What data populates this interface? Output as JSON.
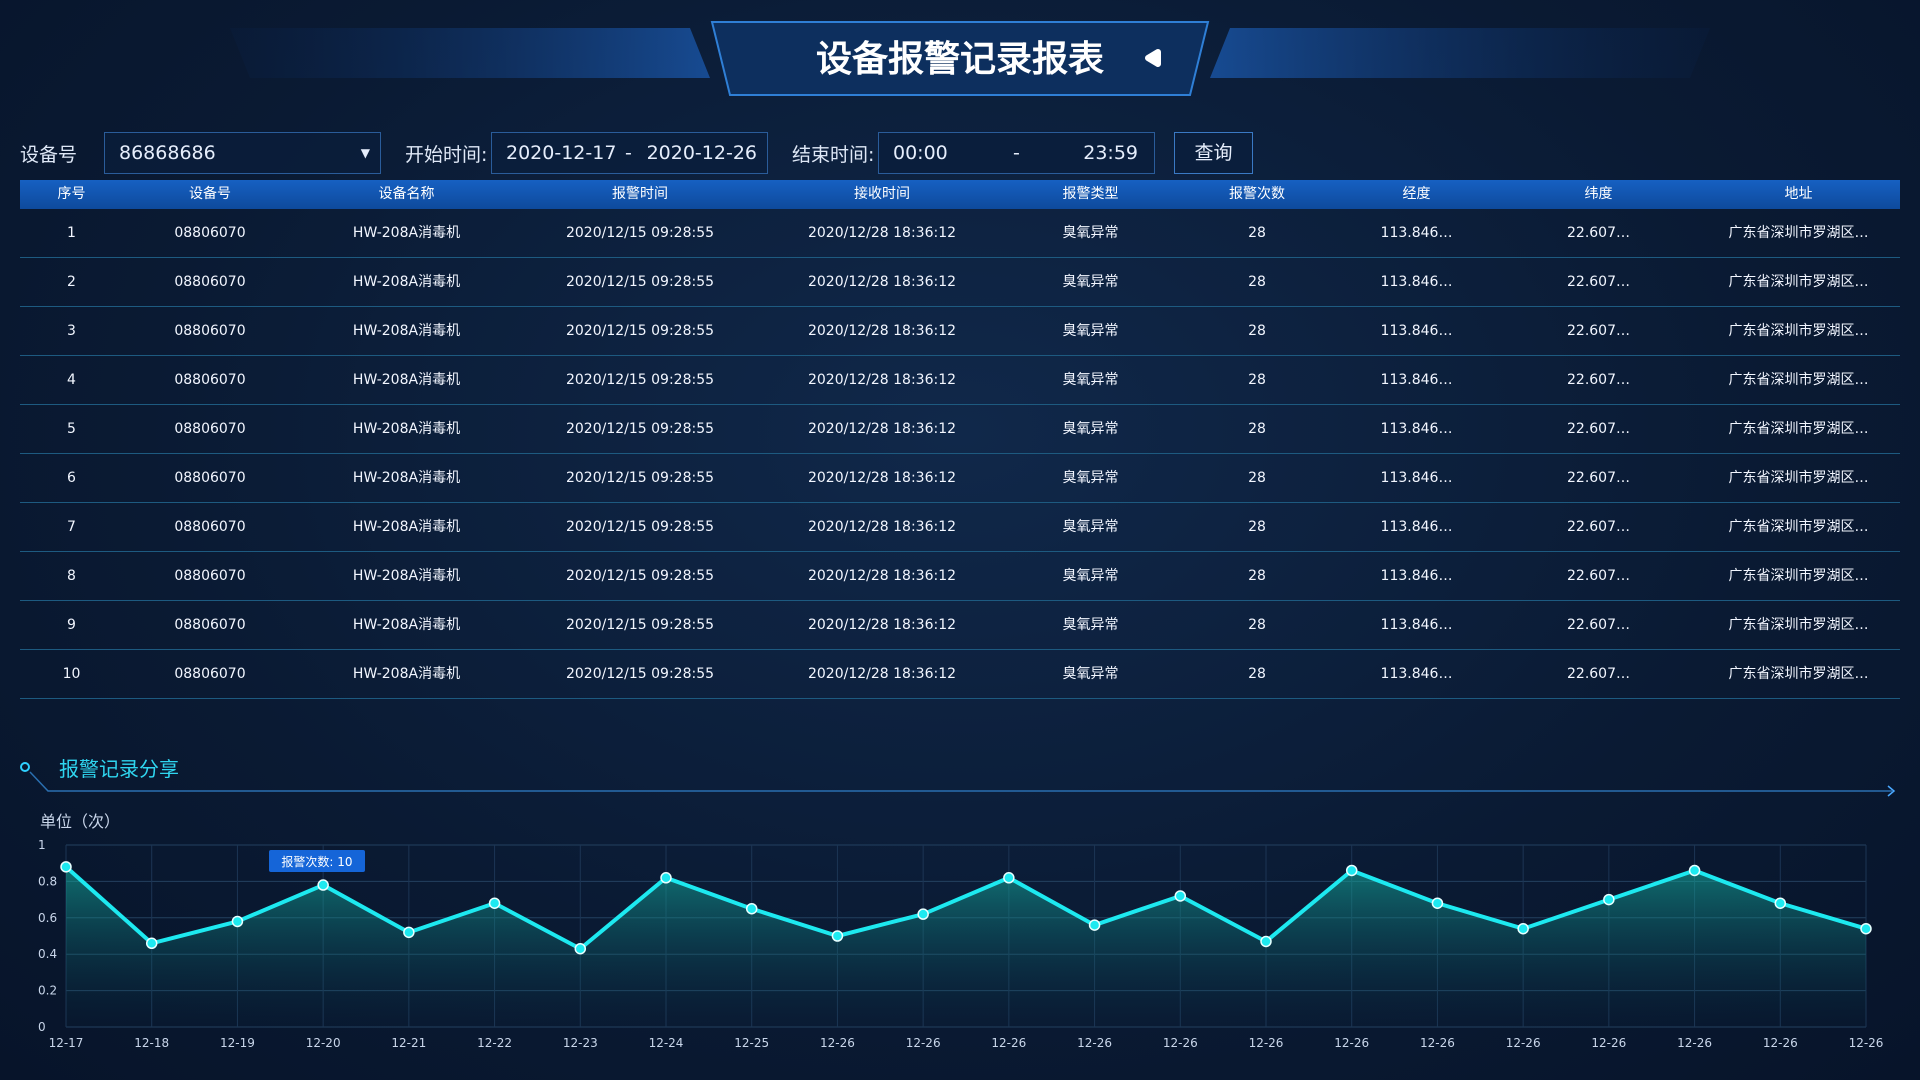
{
  "header": {
    "title": "设备报警记录报表"
  },
  "filters": {
    "device_label": "设备号",
    "device_value": "86868686",
    "start_label": "开始时间:",
    "start_from": "2020-12-17",
    "start_sep": "-",
    "start_to": "2020-12-26",
    "end_label": "结束时间:",
    "end_from": "00:00",
    "end_sep": "-",
    "end_to": "23:59",
    "button": "查询"
  },
  "table": {
    "columns": [
      "序号",
      "设备号",
      "设备名称",
      "报警时间",
      "接收时间",
      "报警类型",
      "报警次数",
      "经度",
      "纬度",
      "地址"
    ],
    "rows": [
      [
        "1",
        "08806070",
        "HW-208A消毒机",
        "2020/12/15 09:28:55",
        "2020/12/28 18:36:12",
        "臭氧异常",
        "28",
        "113.846…",
        "22.607…",
        "广东省深圳市罗湖区…"
      ],
      [
        "2",
        "08806070",
        "HW-208A消毒机",
        "2020/12/15 09:28:55",
        "2020/12/28 18:36:12",
        "臭氧异常",
        "28",
        "113.846…",
        "22.607…",
        "广东省深圳市罗湖区…"
      ],
      [
        "3",
        "08806070",
        "HW-208A消毒机",
        "2020/12/15 09:28:55",
        "2020/12/28 18:36:12",
        "臭氧异常",
        "28",
        "113.846…",
        "22.607…",
        "广东省深圳市罗湖区…"
      ],
      [
        "4",
        "08806070",
        "HW-208A消毒机",
        "2020/12/15 09:28:55",
        "2020/12/28 18:36:12",
        "臭氧异常",
        "28",
        "113.846…",
        "22.607…",
        "广东省深圳市罗湖区…"
      ],
      [
        "5",
        "08806070",
        "HW-208A消毒机",
        "2020/12/15 09:28:55",
        "2020/12/28 18:36:12",
        "臭氧异常",
        "28",
        "113.846…",
        "22.607…",
        "广东省深圳市罗湖区…"
      ],
      [
        "6",
        "08806070",
        "HW-208A消毒机",
        "2020/12/15 09:28:55",
        "2020/12/28 18:36:12",
        "臭氧异常",
        "28",
        "113.846…",
        "22.607…",
        "广东省深圳市罗湖区…"
      ],
      [
        "7",
        "08806070",
        "HW-208A消毒机",
        "2020/12/15 09:28:55",
        "2020/12/28 18:36:12",
        "臭氧异常",
        "28",
        "113.846…",
        "22.607…",
        "广东省深圳市罗湖区…"
      ],
      [
        "8",
        "08806070",
        "HW-208A消毒机",
        "2020/12/15 09:28:55",
        "2020/12/28 18:36:12",
        "臭氧异常",
        "28",
        "113.846…",
        "22.607…",
        "广东省深圳市罗湖区…"
      ],
      [
        "9",
        "08806070",
        "HW-208A消毒机",
        "2020/12/15 09:28:55",
        "2020/12/28 18:36:12",
        "臭氧异常",
        "28",
        "113.846…",
        "22.607…",
        "广东省深圳市罗湖区…"
      ],
      [
        "10",
        "08806070",
        "HW-208A消毒机",
        "2020/12/15 09:28:55",
        "2020/12/28 18:36:12",
        "臭氧异常",
        "28",
        "113.846…",
        "22.607…",
        "广东省深圳市罗湖区…"
      ]
    ]
  },
  "section": {
    "title": "报警记录分享"
  },
  "chart_data": {
    "type": "line",
    "y_label": "单位（次）",
    "annotation": "报警次数: 10",
    "categories": [
      "12-17",
      "12-18",
      "12-19",
      "12-20",
      "12-21",
      "12-22",
      "12-23",
      "12-24",
      "12-25",
      "12-26",
      "12-26",
      "12-26",
      "12-26",
      "12-26",
      "12-26",
      "12-26",
      "12-26",
      "12-26",
      "12-26",
      "12-26",
      "12-26",
      "12-26"
    ],
    "values": [
      0.88,
      0.46,
      0.58,
      0.78,
      0.52,
      0.68,
      0.43,
      0.82,
      0.65,
      0.5,
      0.62,
      0.82,
      0.56,
      0.72,
      0.47,
      0.86,
      0.68,
      0.54,
      0.7,
      0.86,
      0.68,
      0.54
    ],
    "ylim": [
      0,
      1
    ],
    "yticks": [
      0,
      0.2,
      0.4,
      0.6,
      0.8,
      1
    ],
    "color": "#1de9f0",
    "grid": true
  }
}
